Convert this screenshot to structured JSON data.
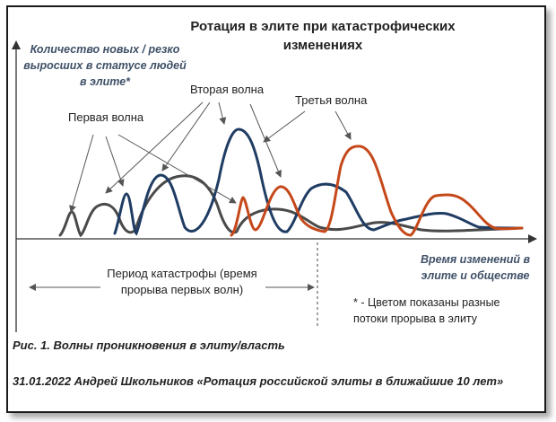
{
  "title": "Ротация в элите при катастрофических изменениях",
  "y_axis_label": "Количество новых / резко выросших в статусе людей в элите*",
  "x_axis_label": "Время изменений в элите и обществе",
  "waves": {
    "first": "Первая волна",
    "second": "Вторая волна",
    "third": "Третья волна"
  },
  "period_label": "Период катастрофы (время прорыва первых волн)",
  "note": "* - Цветом показаны разные потоки прорыва в элиту",
  "caption": "Рис. 1. Волны проникновения в элиту/власть",
  "source": "31.01.2022  Андрей Школьников  «Ротация российской элиты в ближайшие 10 лет»",
  "colors": {
    "grey_stream": "#4a4a4a",
    "navy_stream": "#1f3c63",
    "orange_stream": "#c5481a",
    "axis": "#333333",
    "label_blue": "#3f5067"
  }
}
